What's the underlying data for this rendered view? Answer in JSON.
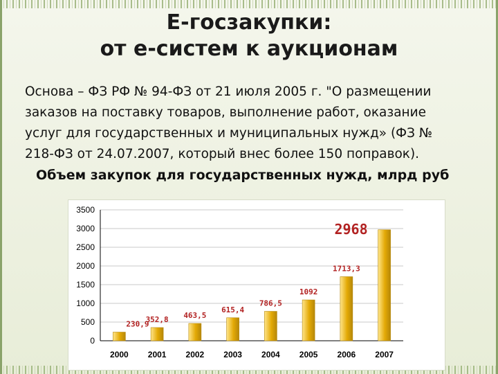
{
  "slide": {
    "title_line1": "Е-госзакупки:",
    "title_line2": "от е-систем к аукционам",
    "body_lines": [
      "Основа – ФЗ РФ № 94-ФЗ от 21 июля 2005 г. \"О размещении",
      "заказов на поставку товаров, выполнение работ, оказание",
      "услуг для государственных и муниципальных нужд» (ФЗ №",
      "218-ФЗ от 24.07.2007, который внес более 150 поправок)."
    ],
    "chart_heading": "Объем закупок для государственных нужд, млрд руб"
  },
  "colors": {
    "bar_top": "#ffe58a",
    "bar_bottom": "#e3a905",
    "bar_edge": "#b5870a",
    "label_red": "#b22222"
  },
  "chart_data": {
    "type": "bar",
    "categories": [
      "2000",
      "2001",
      "2002",
      "2003",
      "2004",
      "2005",
      "2006",
      "2007"
    ],
    "values": [
      230.9,
      352.8,
      463.5,
      615.4,
      786.5,
      1092,
      1713.3,
      2968
    ],
    "value_labels": [
      "230,9",
      "352,8",
      "463,5",
      "615,4",
      "786,5",
      "1092",
      "1713,3",
      "2968"
    ],
    "ylim": [
      0,
      3500
    ],
    "yticks": [
      "0",
      "500",
      "1000",
      "1500",
      "2000",
      "2500",
      "3000",
      "3500"
    ],
    "grid": true
  }
}
